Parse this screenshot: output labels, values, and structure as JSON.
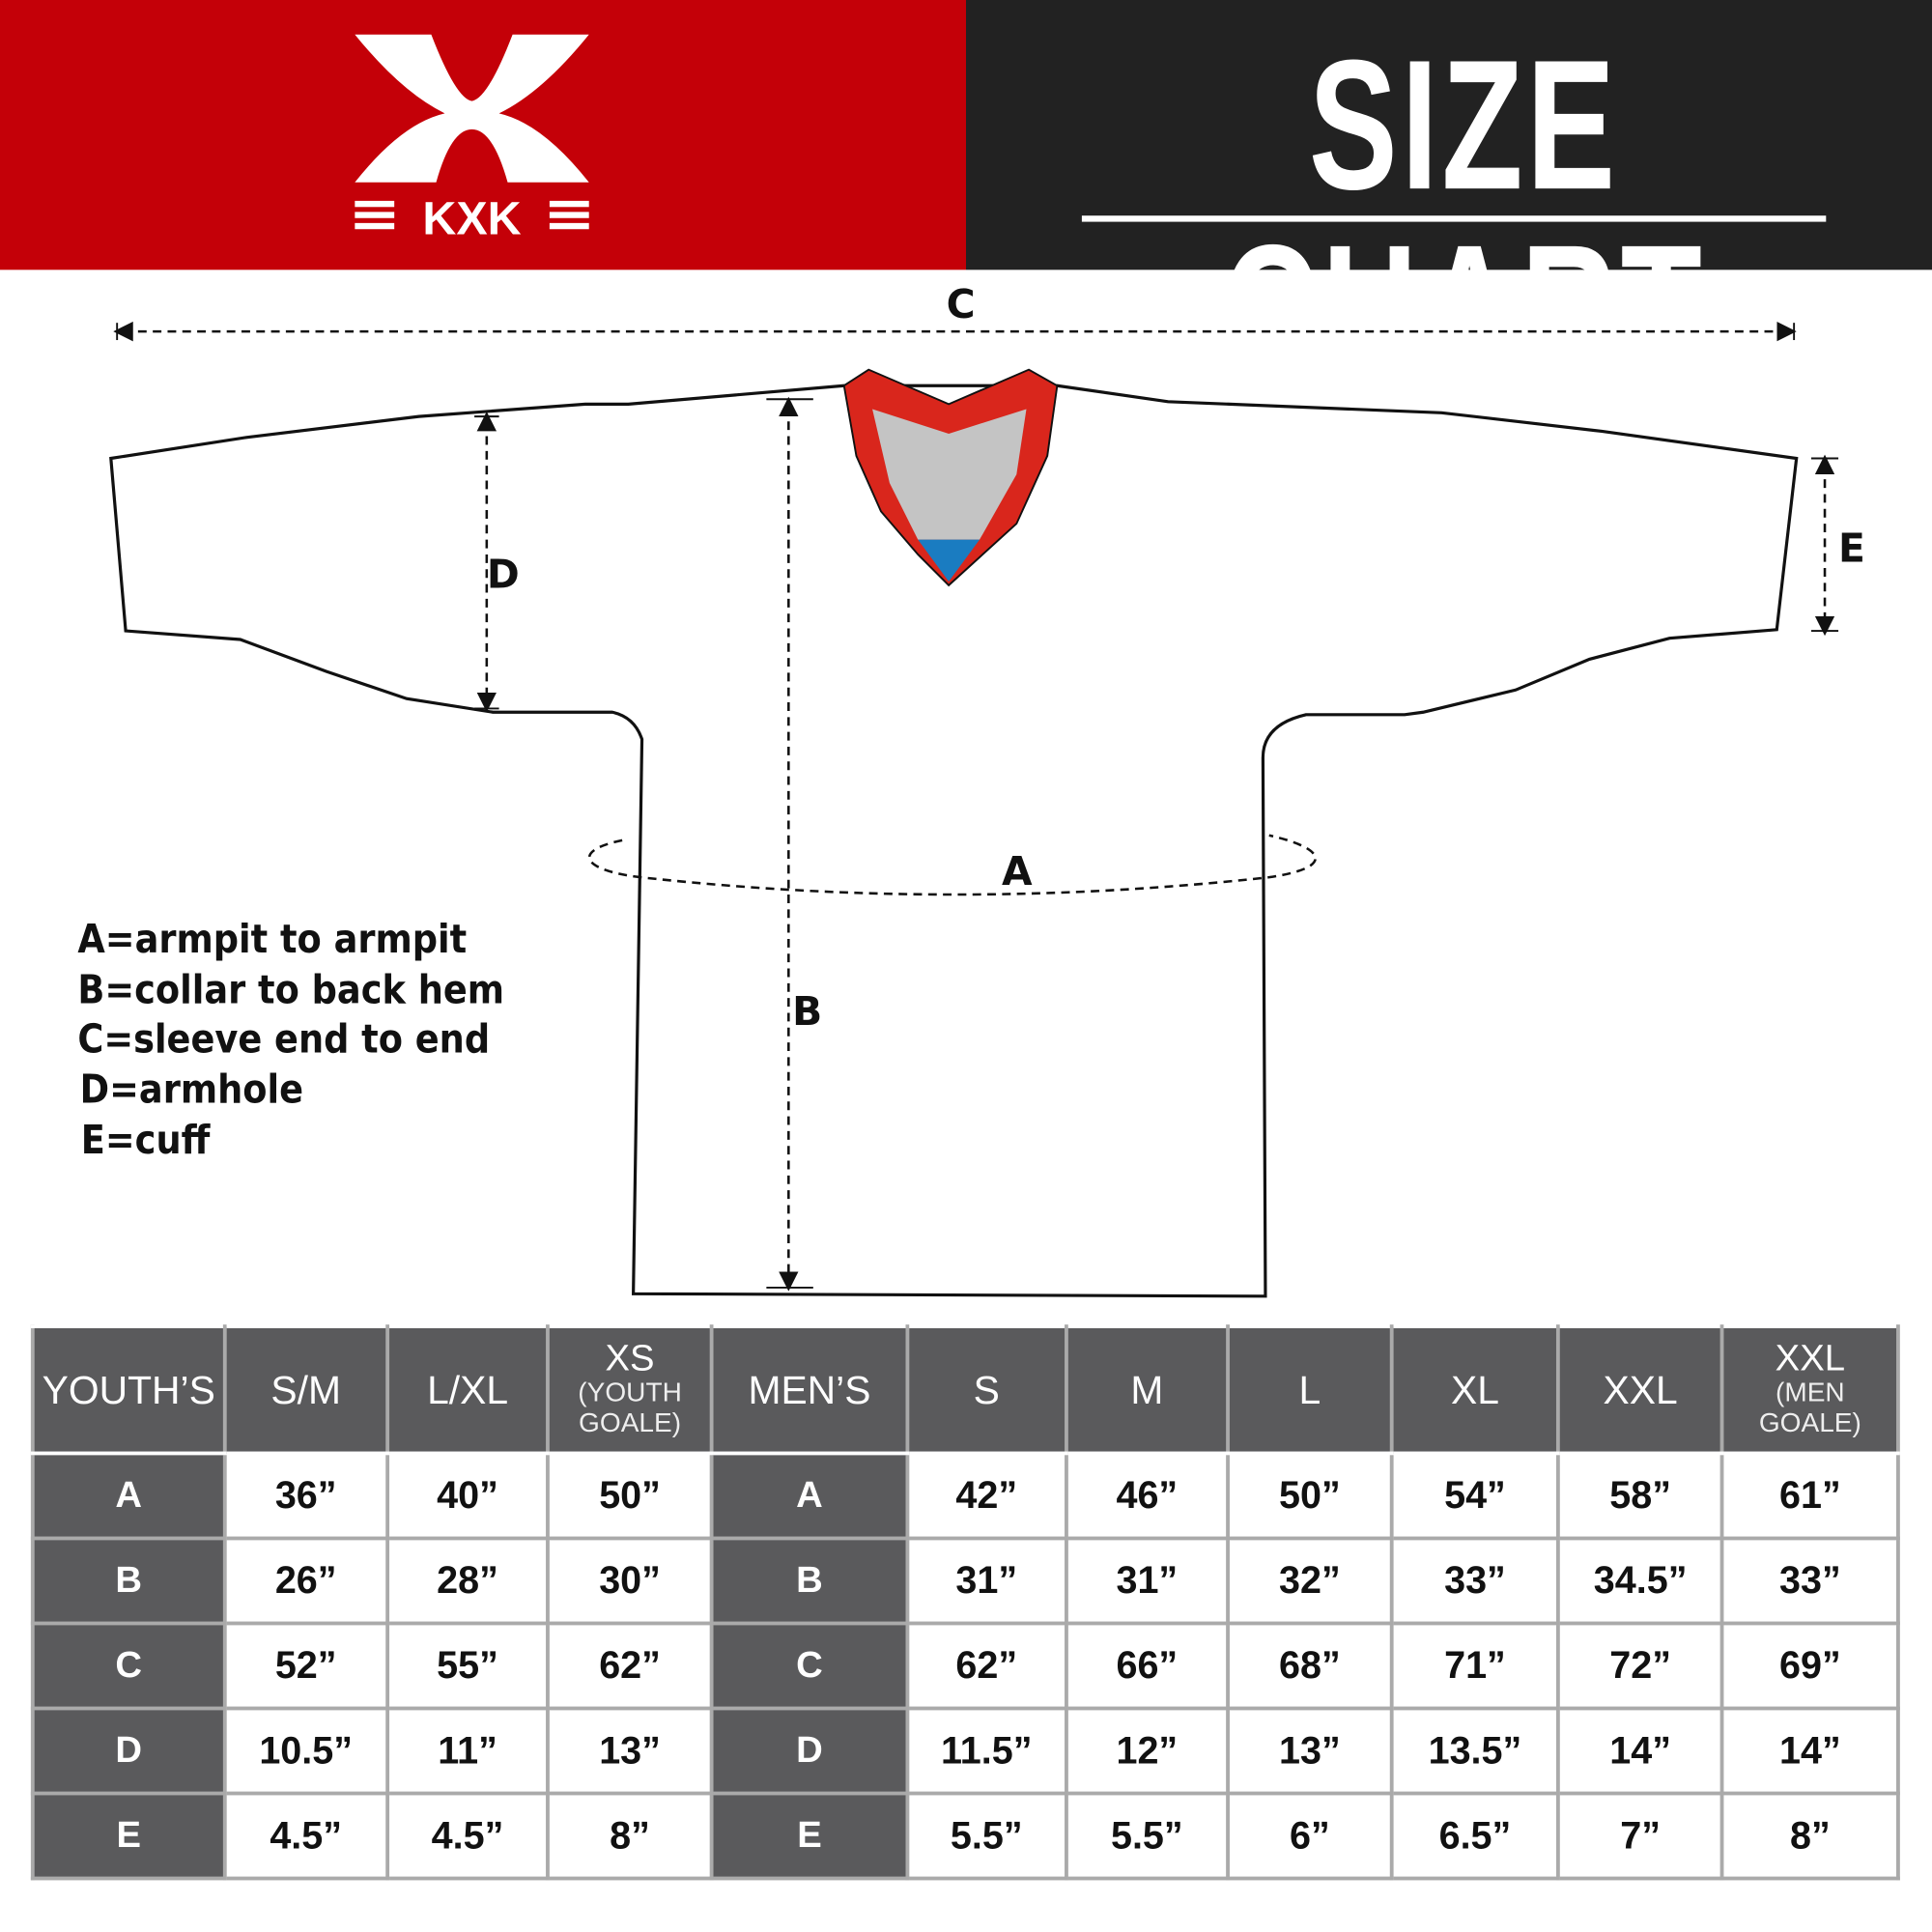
{
  "brand": {
    "logo_text": "KXK",
    "colors": {
      "red": "#c40008",
      "dark": "#222222",
      "table_header": "#5a5a5c",
      "collar_red": "#d9261c",
      "collar_blue": "#1a7cc1"
    }
  },
  "title": "SIZE CHART",
  "dimensions": {
    "A": "A",
    "B": "B",
    "C": "C",
    "D": "D",
    "E": "E"
  },
  "legend": [
    "A=armpit to armpit",
    "B=collar to back hem",
    "C=sleeve end to end",
    "D=armhole",
    "E=cuff"
  ],
  "table": {
    "headers": [
      {
        "main": "YOUTH’S"
      },
      {
        "main": "S/M"
      },
      {
        "main": "L/XL"
      },
      {
        "main": "XS",
        "sub1": "(YOUTH",
        "sub2": "GOALE)"
      },
      {
        "main": "MEN’S"
      },
      {
        "main": "S"
      },
      {
        "main": "M"
      },
      {
        "main": "L"
      },
      {
        "main": "XL"
      },
      {
        "main": "XXL"
      },
      {
        "main": "XXL",
        "sub1": "(MEN",
        "sub2": "GOALE)"
      }
    ],
    "rows": [
      {
        "label": "A",
        "youth": [
          "36”",
          "40”",
          "50”"
        ],
        "men_label": "A",
        "men": [
          "42”",
          "46”",
          "50”",
          "54”",
          "58”",
          "61”"
        ]
      },
      {
        "label": "B",
        "youth": [
          "26”",
          "28”",
          "30”"
        ],
        "men_label": "B",
        "men": [
          "31”",
          "31”",
          "32”",
          "33”",
          "34.5”",
          "33”"
        ]
      },
      {
        "label": "C",
        "youth": [
          "52”",
          "55”",
          "62”"
        ],
        "men_label": "C",
        "men": [
          "62”",
          "66”",
          "68”",
          "71”",
          "72”",
          "69”"
        ]
      },
      {
        "label": "D",
        "youth": [
          "10.5”",
          "11”",
          "13”"
        ],
        "men_label": "D",
        "men": [
          "11.5”",
          "12”",
          "13”",
          "13.5”",
          "14”",
          "14”"
        ]
      },
      {
        "label": "E",
        "youth": [
          "4.5”",
          "4.5”",
          "8”"
        ],
        "men_label": "E",
        "men": [
          "5.5”",
          "5.5”",
          "6”",
          "6.5”",
          "7”",
          "8”"
        ]
      }
    ]
  }
}
